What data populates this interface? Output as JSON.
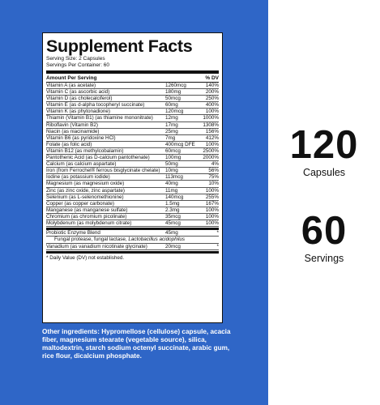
{
  "panel": {
    "title": "Supplement Facts",
    "serving_size": "Serving Size: 2 Capsules",
    "servings_per_container": "Servings Per Container: 60",
    "header_amount": "Amount Per Serving",
    "header_dv": "% DV",
    "nutrients": [
      {
        "name": "Vitamin A (as acetate)",
        "amount": "1260mcg",
        "dv": "140%"
      },
      {
        "name": "Vitamin C (as ascorbic acid)",
        "amount": "180mg",
        "dv": "200%"
      },
      {
        "name": "Vitamin D (as cholecalciferol)",
        "amount": "50mcg",
        "dv": "250%"
      },
      {
        "name": "Vitamin E (as d-alpha tocopheryl succinate)",
        "amount": "60mg",
        "dv": "400%"
      },
      {
        "name": "Vitamin K (as phytonadione)",
        "amount": "120mcg",
        "dv": "100%"
      },
      {
        "name": "Thiamin (Vitamin B1) (as thiamine mononitrate)",
        "amount": "12mg",
        "dv": "1000%"
      },
      {
        "name": "Riboflavin (Vitamin B2)",
        "amount": "17mg",
        "dv": "1308%"
      },
      {
        "name": "Niacin (as niacinamide)",
        "amount": "25mg",
        "dv": "156%"
      },
      {
        "name": "Vitamin B6 (as pyridoxine HCl)",
        "amount": "7mg",
        "dv": "412%"
      },
      {
        "name": "Folate (as folic acid)",
        "amount": "400mcg DFE",
        "dv": "100%"
      },
      {
        "name": "Vitamin B12 (as methylcobalamin)",
        "amount": "60mcg",
        "dv": "2500%"
      },
      {
        "name": "Pantothenic Acid (as D-calcium pantothenate)",
        "amount": "100mg",
        "dv": "2000%"
      },
      {
        "name": "Calcium (as calcium aspartate)",
        "amount": "50mg",
        "dv": "4%"
      },
      {
        "name": "Iron (from Ferrochel® ferrous bisglycinate chelate)",
        "amount": "10mg",
        "dv": "56%"
      },
      {
        "name": "Iodine (as potassium iodide)",
        "amount": "113mcg",
        "dv": "75%"
      },
      {
        "name": "Magnesium (as magnesium oxide)",
        "amount": "40mg",
        "dv": "10%"
      },
      {
        "name": "Zinc (as zinc oxide, zinc aspartate)",
        "amount": "11mg",
        "dv": "100%"
      },
      {
        "name": "Selenium (as L-selenomethionine)",
        "amount": "140mcg",
        "dv": "255%"
      },
      {
        "name": "Copper (as copper carbonate)",
        "amount": "1.5mg",
        "dv": "167%"
      },
      {
        "name": "Manganese (as manganese sulfate)",
        "amount": "2.3mg",
        "dv": "100%"
      },
      {
        "name": "Chromium (as chromium picolinate)",
        "amount": "35mcg",
        "dv": "100%"
      },
      {
        "name": "Molybdenum (as molybdenum citrate)",
        "amount": "45mcg",
        "dv": "100%"
      }
    ],
    "blend": {
      "name": "Probiotic Enzyme Blend",
      "amount": "45mg",
      "dv": "*"
    },
    "blend_sub_plain": "Fungal protease, fungal lactase, ",
    "blend_sub_italic": "Lactobacillus acidophilus",
    "vanadium": {
      "name": "Vanadium (as vanadium nicotinate glycinate)",
      "amount": "20mcg",
      "dv": "*"
    },
    "footnote": "* Daily Value (DV) not established."
  },
  "other_ingredients": "Other ingredients: Hypromellose (cellulose) capsule, acacia fiber, magnesium stearate (vegetable source), silica, maltodextrin, starch sodium octenyl succinate, arabic gum, rice flour, dicalcium phosphate.",
  "stats": [
    {
      "number": "120",
      "label": "Capsules"
    },
    {
      "number": "60",
      "label": "Servings"
    }
  ],
  "colors": {
    "panel_blue": "#2f66c7",
    "text": "#111111"
  }
}
